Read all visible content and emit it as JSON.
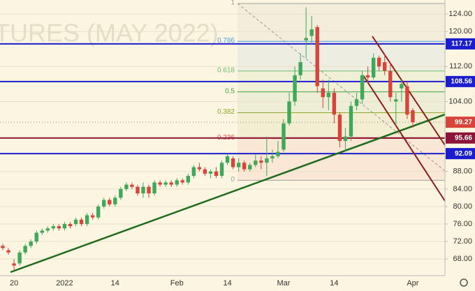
{
  "chart_data": {
    "type": "candlestick",
    "watermark": "TURES (MAY 2022)",
    "categories": [
      null,
      null,
      "20",
      null,
      null,
      null,
      null,
      null,
      null,
      null,
      null,
      "2022",
      null,
      null,
      null,
      null,
      null,
      null,
      null,
      null,
      "14",
      null,
      null,
      null,
      null,
      null,
      null,
      null,
      null,
      null,
      null,
      "Feb",
      null,
      null,
      null,
      null,
      null,
      null,
      null,
      null,
      "14",
      null,
      null,
      null,
      null,
      null,
      null,
      null,
      null,
      null,
      "Mar",
      null,
      null,
      null,
      null,
      null,
      null,
      null,
      null,
      "14",
      null,
      null,
      null,
      null,
      null,
      null,
      null,
      null,
      null,
      null,
      null,
      null,
      null,
      "Apr"
    ],
    "open": [
      71,
      70,
      67,
      67,
      69.5,
      71,
      72,
      74,
      74.5,
      75,
      75.5,
      75,
      76,
      76,
      77,
      76,
      78,
      77.5,
      80,
      81.5,
      80.5,
      82,
      84,
      85,
      84.5,
      83,
      84.5,
      83,
      85.5,
      85,
      85.5,
      85,
      86,
      85.5,
      87,
      89,
      88.5,
      87.5,
      88,
      87,
      90,
      91,
      89,
      90,
      88.5,
      89.5,
      90.5,
      90,
      91,
      91.5,
      93,
      99,
      104,
      110,
      118,
      119,
      121,
      107,
      105,
      106,
      101,
      95,
      96,
      103,
      104.5,
      110,
      109.5,
      114,
      113,
      111,
      104,
      107,
      107.5,
      102
    ],
    "high": [
      71.5,
      70.5,
      68,
      70,
      71.5,
      72.5,
      74.5,
      75,
      75.5,
      76,
      76,
      76.5,
      76.5,
      77.5,
      77.5,
      78.5,
      78.5,
      80.5,
      82,
      82,
      82.5,
      84.5,
      85.5,
      85.5,
      85,
      85.5,
      85,
      86,
      86,
      86,
      86,
      86.5,
      86.5,
      87.5,
      89.5,
      90,
      89,
      88.5,
      89,
      90.5,
      92,
      91.5,
      91,
      90.5,
      90,
      92,
      91.5,
      96,
      93,
      95,
      100,
      106,
      112,
      115,
      125.5,
      123.5,
      121.5,
      109,
      109,
      107,
      101.5,
      98,
      104,
      106,
      111,
      112,
      115,
      114.5,
      115,
      113,
      106,
      109,
      108.5,
      102.5
    ],
    "low": [
      70,
      69,
      65.5,
      66.5,
      69,
      70.5,
      71.5,
      73.5,
      74,
      74.5,
      74.5,
      74.5,
      75,
      75.5,
      75.5,
      75.5,
      77,
      77,
      79.5,
      80,
      80,
      81.5,
      83.5,
      84,
      82.5,
      82,
      82,
      82.5,
      84.5,
      84.5,
      84.5,
      84.5,
      85,
      85,
      86.5,
      88,
      87,
      86.5,
      86.5,
      86.5,
      89.5,
      88.5,
      88,
      88,
      88,
      89,
      88.5,
      87,
      90,
      91,
      92.5,
      98.5,
      103,
      109,
      114,
      117,
      106,
      102.5,
      102,
      99,
      93.5,
      92.5,
      95,
      102,
      103.5,
      108,
      109,
      111,
      110,
      104,
      98.5,
      104,
      100,
      98
    ],
    "close": [
      70.5,
      69.5,
      66.5,
      69.5,
      71,
      72,
      74,
      74.5,
      75,
      75.5,
      75,
      76,
      75.5,
      77,
      76,
      78,
      77.5,
      80,
      81.5,
      80.5,
      82,
      84,
      85,
      84.5,
      83,
      84.5,
      83,
      85.5,
      85,
      85.5,
      85,
      86,
      85.5,
      87,
      89,
      88.5,
      87.5,
      88,
      87,
      90,
      91.5,
      89,
      90,
      88.5,
      89.5,
      90.5,
      90,
      91,
      91.5,
      92.5,
      99,
      104,
      110,
      113,
      118.5,
      120.5,
      107.5,
      105,
      106,
      101,
      95,
      96,
      103,
      104.5,
      110,
      109.5,
      114,
      112,
      111,
      105,
      104.5,
      108,
      101,
      99.27
    ],
    "colors": {
      "up": "#3fa85a",
      "down": "#d8433a"
    },
    "ylim": [
      64.2,
      127.2
    ],
    "yticks": [
      {
        "value": 124,
        "label": "124.00"
      },
      {
        "value": 120,
        "label": "120.00"
      },
      {
        "value": 112,
        "label": "112.00"
      },
      {
        "value": 104,
        "label": "104.00"
      },
      {
        "value": 88,
        "label": "88.00"
      },
      {
        "value": 84,
        "label": "84.00"
      },
      {
        "value": 80,
        "label": "80.00"
      },
      {
        "value": 76,
        "label": "76.00"
      },
      {
        "value": 72,
        "label": "72.00"
      },
      {
        "value": 68,
        "label": "68.00"
      }
    ],
    "grid": true,
    "levels": [
      {
        "value": 117.17,
        "color": "#1c1ccf"
      },
      {
        "value": 108.56,
        "color": "#1c1ccf"
      },
      {
        "value": 95.66,
        "color": "#8a1538"
      },
      {
        "value": 92.09,
        "color": "#1c1ccf"
      }
    ],
    "last_price_color": "#d8433a",
    "fib_range": [
      86,
      126.4
    ],
    "fib_levels": [
      {
        "level": 1,
        "color": "#9e9e9e"
      },
      {
        "level": 0.786,
        "color": "#4a9fe0"
      },
      {
        "level": 0.618,
        "color": "#6cbf6c"
      },
      {
        "level": 0.5,
        "color": "#43a047"
      },
      {
        "level": 0.382,
        "color": "#8aab2a"
      },
      {
        "level": 0.236,
        "color": "#e0524a"
      },
      {
        "level": 0,
        "color": "#9e9e9e"
      }
    ]
  }
}
